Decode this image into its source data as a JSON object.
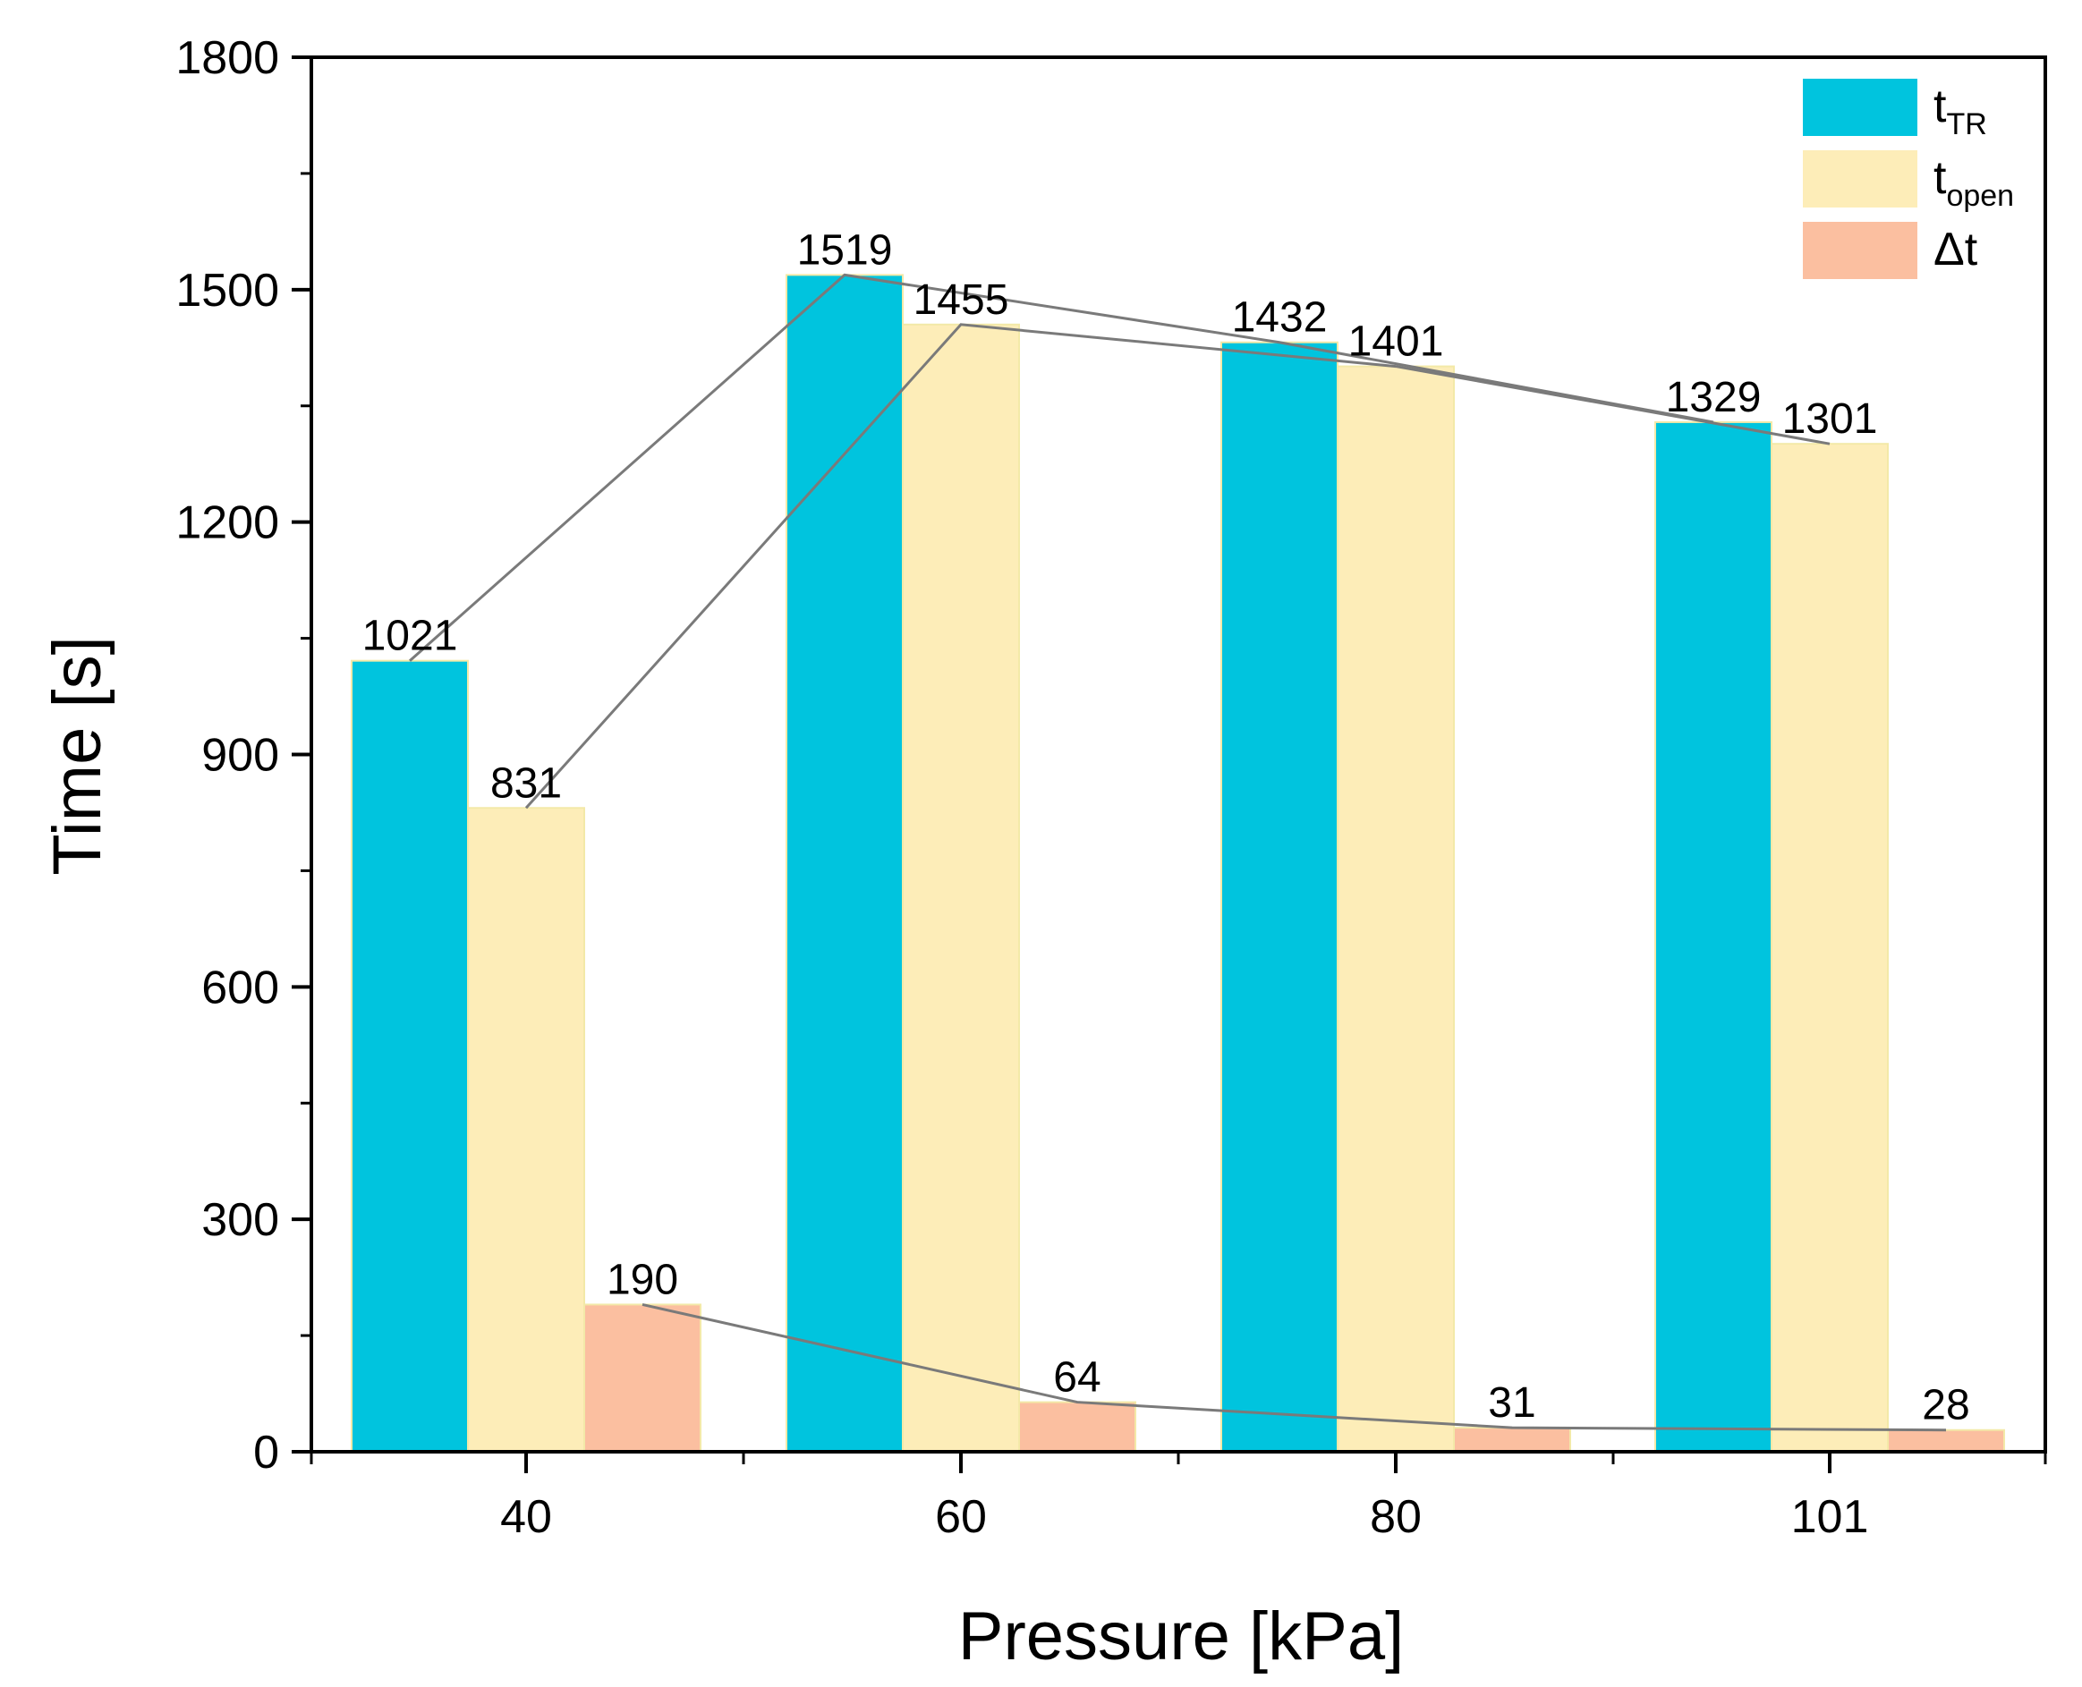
{
  "chart_data": {
    "type": "bar",
    "xlabel": "Pressure [kPa]",
    "ylabel": "Time [s]",
    "ylim": [
      0,
      1800
    ],
    "yticks": [
      "0",
      "300",
      "600",
      "900",
      "1200",
      "1500",
      "1800"
    ],
    "categories": [
      "40",
      "60",
      "80",
      "101"
    ],
    "series": [
      {
        "name_main": "t",
        "name_sub": "TR",
        "color": "#00C4DE",
        "values": [
          1021,
          1519,
          1432,
          1329
        ],
        "labels": [
          "1021",
          "1519",
          "1432",
          "1329"
        ]
      },
      {
        "name_main": "t",
        "name_sub": "open",
        "color": "#FDEDB8",
        "values": [
          831,
          1455,
          1401,
          1301
        ],
        "labels": [
          "831",
          "1455",
          "1401",
          "1301"
        ]
      },
      {
        "name_main": "Δt",
        "name_sub": "",
        "color": "#FBBFA0",
        "values": [
          190,
          64,
          31,
          28
        ],
        "labels": [
          "190",
          "64",
          "31",
          "28"
        ]
      }
    ],
    "connector_lines": true,
    "legend_position": "top-right",
    "grid": false
  }
}
